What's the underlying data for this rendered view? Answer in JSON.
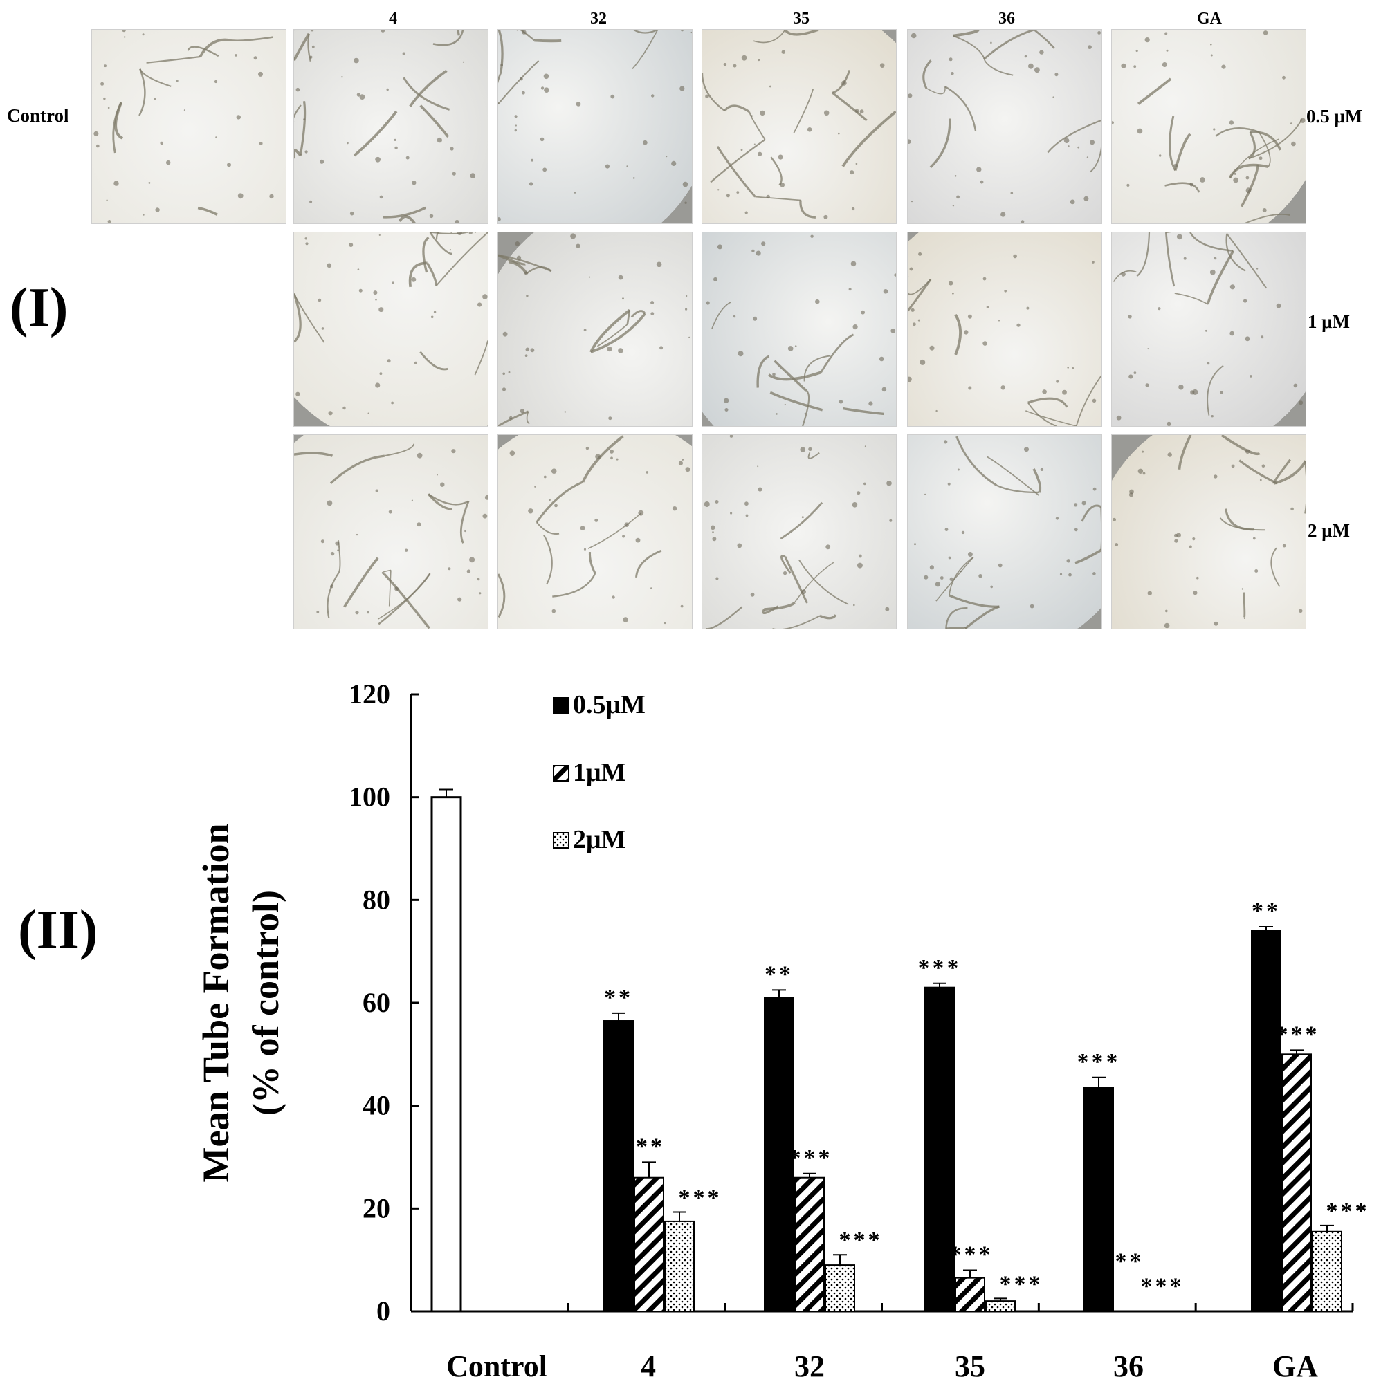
{
  "panel_labels": {
    "panel1": "(I)",
    "panel2": "(II)"
  },
  "micrographs": {
    "row_label_left": "Control",
    "columns": [
      "4",
      "32",
      "35",
      "36",
      "GA"
    ],
    "rows": [
      "0.5 μM",
      "1 μM",
      "2 μM"
    ]
  },
  "colors": {
    "bar_05": "#000000",
    "bar_1_hatch": "#000000",
    "bar_2_dots": "#000000",
    "control_fill": "#ffffff"
  },
  "chart_data": {
    "type": "bar",
    "title": "",
    "ylabel_line1": "Mean Tube Formation",
    "ylabel_line2": "(% of control)",
    "xlabel": "",
    "ylim": [
      0,
      120
    ],
    "yticks": [
      "0",
      "20",
      "40",
      "60",
      "80",
      "100",
      "120"
    ],
    "categories": [
      "Control",
      "4",
      "32",
      "35",
      "36",
      "GA"
    ],
    "control": {
      "value": 100,
      "error": 1.5
    },
    "legend": {
      "placement": "top",
      "entries": [
        "0.5μM",
        "1μM",
        "2μM"
      ]
    },
    "series": [
      {
        "name": "0.5μM",
        "pattern": "solid",
        "values": [
          null,
          56.5,
          61,
          63,
          null,
          74
        ],
        "errors": [
          null,
          1.5,
          1.5,
          0.8,
          null,
          0.8
        ],
        "sig": [
          null,
          "**",
          "**",
          "***",
          "***",
          "**"
        ]
      },
      {
        "name": "1μM",
        "pattern": "hatch",
        "values": [
          null,
          26,
          26,
          6.5,
          null,
          50
        ],
        "errors": [
          null,
          3,
          0.8,
          1.5,
          null,
          0.8
        ],
        "sig": [
          null,
          "**",
          "***",
          "***",
          "***",
          "***"
        ]
      },
      {
        "name": "2μM",
        "pattern": "dots",
        "values": [
          null,
          17.5,
          9,
          2,
          null,
          15.5
        ],
        "errors": [
          null,
          1.8,
          2,
          0.5,
          null,
          1.2
        ],
        "sig": [
          null,
          "***",
          "***",
          "***",
          "***",
          "***"
        ]
      }
    ],
    "series_0_5_36": 43.5,
    "error_0_5_36": 2
  }
}
